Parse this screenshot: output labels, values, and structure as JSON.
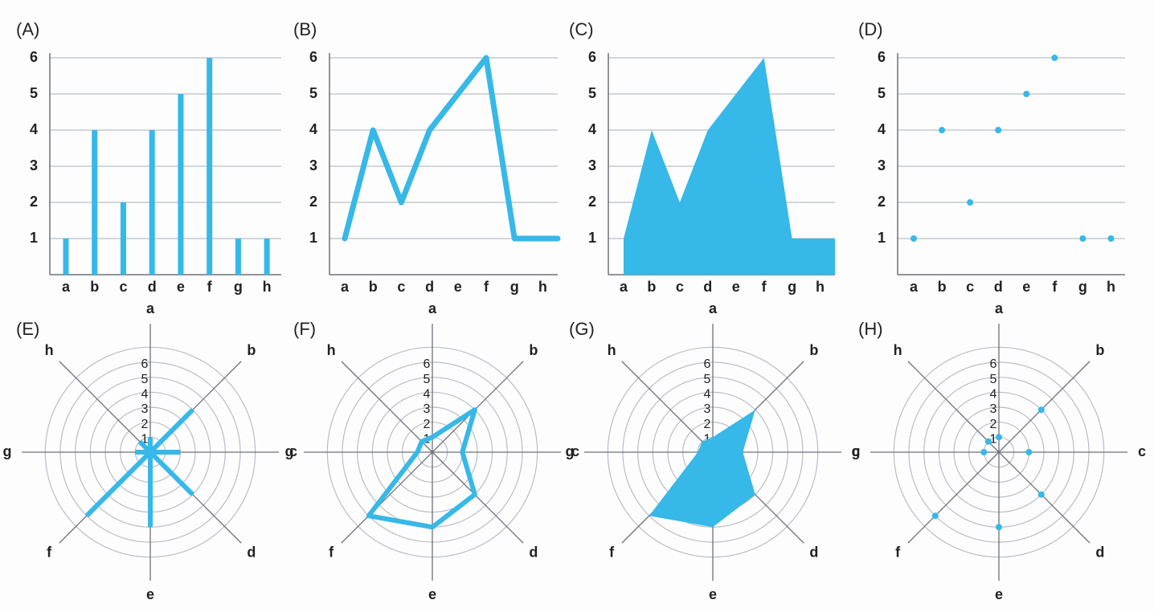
{
  "colors": {
    "series": "#36b8e8",
    "grid": "#b9bec6",
    "axis": "#6e7178",
    "text": "#222222"
  },
  "chart_data": [
    {
      "panel": "(A)",
      "type": "bar",
      "categories": [
        "a",
        "b",
        "c",
        "d",
        "e",
        "f",
        "g",
        "h"
      ],
      "values": [
        1,
        4,
        2,
        4,
        5,
        6,
        1,
        1
      ],
      "ylim": [
        0,
        6
      ],
      "yticks": [
        "1",
        "2",
        "3",
        "4",
        "5",
        "6"
      ],
      "grid": true
    },
    {
      "panel": "(B)",
      "type": "line",
      "categories": [
        "a",
        "b",
        "c",
        "d",
        "e",
        "f",
        "g",
        "h"
      ],
      "values": [
        1,
        4,
        2,
        4,
        5,
        6,
        1,
        1
      ],
      "ylim": [
        0,
        6
      ],
      "yticks": [
        "1",
        "2",
        "3",
        "4",
        "5",
        "6"
      ],
      "grid": true
    },
    {
      "panel": "(C)",
      "type": "area",
      "categories": [
        "a",
        "b",
        "c",
        "d",
        "e",
        "f",
        "g",
        "h"
      ],
      "values": [
        1,
        4,
        2,
        4,
        5,
        6,
        1,
        1
      ],
      "ylim": [
        0,
        6
      ],
      "yticks": [
        "1",
        "2",
        "3",
        "4",
        "5",
        "6"
      ],
      "grid": true
    },
    {
      "panel": "(D)",
      "type": "scatter",
      "categories": [
        "a",
        "b",
        "c",
        "d",
        "e",
        "f",
        "g",
        "h"
      ],
      "values": [
        1,
        4,
        2,
        4,
        5,
        6,
        1,
        1
      ],
      "ylim": [
        0,
        6
      ],
      "yticks": [
        "1",
        "2",
        "3",
        "4",
        "5",
        "6"
      ],
      "grid": true
    },
    {
      "panel": "(E)",
      "type": "radial-bar",
      "categories": [
        "a",
        "b",
        "c",
        "d",
        "e",
        "f",
        "g",
        "h"
      ],
      "values": [
        1,
        4,
        2,
        4,
        5,
        6,
        1,
        1
      ],
      "rlim": [
        0,
        6
      ],
      "rticks": [
        "1",
        "2",
        "3",
        "4",
        "5",
        "6"
      ],
      "grid": true
    },
    {
      "panel": "(F)",
      "type": "radar-line",
      "categories": [
        "a",
        "b",
        "c",
        "d",
        "e",
        "f",
        "g",
        "h"
      ],
      "values": [
        1,
        4,
        2,
        4,
        5,
        6,
        1,
        1
      ],
      "rlim": [
        0,
        6
      ],
      "rticks": [
        "1",
        "2",
        "3",
        "4",
        "5",
        "6"
      ],
      "grid": true
    },
    {
      "panel": "(G)",
      "type": "radar-area",
      "categories": [
        "a",
        "b",
        "c",
        "d",
        "e",
        "f",
        "g",
        "h"
      ],
      "values": [
        1,
        4,
        2,
        4,
        5,
        6,
        1,
        1
      ],
      "rlim": [
        0,
        6
      ],
      "rticks": [
        "1",
        "2",
        "3",
        "4",
        "5",
        "6"
      ],
      "grid": true
    },
    {
      "panel": "(H)",
      "type": "radar-scatter",
      "categories": [
        "a",
        "b",
        "c",
        "d",
        "e",
        "f",
        "g",
        "h"
      ],
      "values": [
        1,
        4,
        2,
        4,
        5,
        6,
        1,
        1
      ],
      "rlim": [
        0,
        6
      ],
      "rticks": [
        "1",
        "2",
        "3",
        "4",
        "5",
        "6"
      ],
      "grid": true
    }
  ]
}
